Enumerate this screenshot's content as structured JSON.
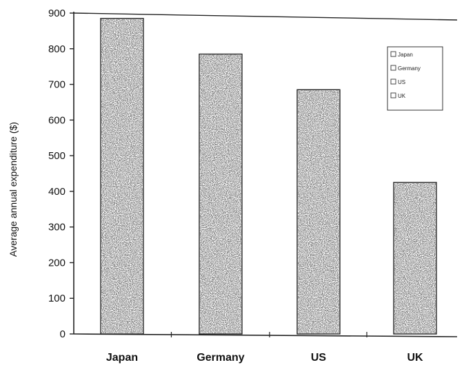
{
  "chart_data": {
    "type": "bar",
    "title": "",
    "xlabel": "",
    "ylabel": "Average annual expenditure ($)",
    "categories": [
      "Japan",
      "Germany",
      "US",
      "UK"
    ],
    "values": [
      885,
      785,
      685,
      425
    ],
    "ylim": [
      0,
      900
    ],
    "yticks": [
      0,
      100,
      200,
      300,
      400,
      500,
      600,
      700,
      800,
      900
    ],
    "ytick_labels": [
      "0",
      "100",
      "200",
      "300",
      "400",
      "500",
      "600",
      "700",
      "800",
      "900"
    ],
    "legend": {
      "entries": [
        "Japan",
        "Germany",
        "US",
        "UK"
      ],
      "placement": "top-right"
    },
    "grid": false,
    "bar_fill": "#ffffff",
    "bar_stipple": "#555555",
    "axis_color": "#222222"
  }
}
